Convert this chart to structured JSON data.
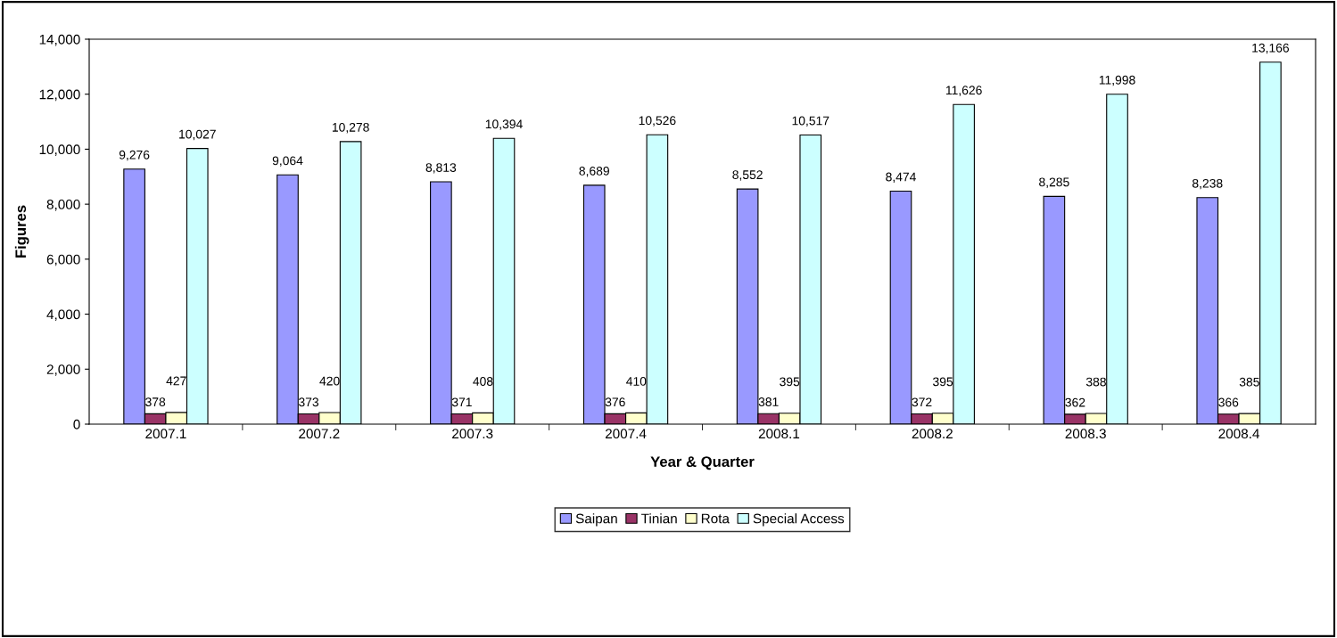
{
  "chart_data": {
    "type": "bar",
    "xlabel": "Year & Quarter",
    "ylabel": "Figures",
    "categories": [
      "2007.1",
      "2007.2",
      "2007.3",
      "2007.4",
      "2008.1",
      "2008.2",
      "2008.3",
      "2008.4"
    ],
    "series": [
      {
        "name": "Saipan",
        "color": "#9999ff",
        "values": [
          9276,
          9064,
          8813,
          8689,
          8552,
          8474,
          8285,
          8238
        ],
        "value_labels": [
          "9,276",
          "9,064",
          "8,813",
          "8,689",
          "8,552",
          "8,474",
          "8,285",
          "8,238"
        ]
      },
      {
        "name": "Tinian",
        "color": "#993366",
        "values": [
          378,
          373,
          371,
          376,
          381,
          372,
          362,
          366
        ],
        "value_labels": [
          "378",
          "373",
          "371",
          "376",
          "381",
          "372",
          "362",
          "366"
        ]
      },
      {
        "name": "Rota",
        "color": "#ffffcc",
        "values": [
          427,
          420,
          408,
          410,
          395,
          395,
          388,
          385
        ],
        "value_labels": [
          "427",
          "420",
          "408",
          "410",
          "395",
          "395",
          "388",
          "385"
        ]
      },
      {
        "name": "Special Access",
        "color": "#ccffff",
        "values": [
          10027,
          10278,
          10394,
          10526,
          10517,
          11626,
          11998,
          13166
        ],
        "value_labels": [
          "10,027",
          "10,278",
          "10,394",
          "10,526",
          "10,517",
          "11,626",
          "11,998",
          "13,166"
        ]
      }
    ],
    "ylim": [
      0,
      14000
    ],
    "yticks": [
      {
        "value": 0,
        "label": "0"
      },
      {
        "value": 2000,
        "label": "2,000"
      },
      {
        "value": 4000,
        "label": "4,000"
      },
      {
        "value": 6000,
        "label": "6,000"
      },
      {
        "value": 8000,
        "label": "8,000"
      },
      {
        "value": 10000,
        "label": "10,000"
      },
      {
        "value": 12000,
        "label": "12,000"
      },
      {
        "value": 14000,
        "label": "14,000"
      }
    ],
    "grid": false,
    "legend": "bottom"
  }
}
